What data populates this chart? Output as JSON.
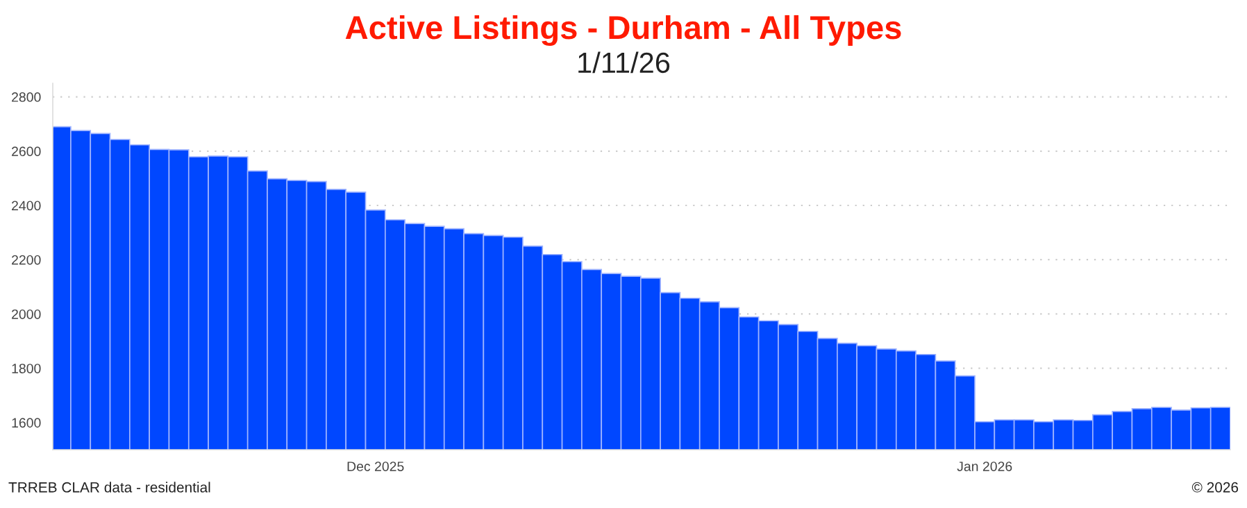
{
  "chart_data": {
    "type": "bar",
    "title": "Active Listings - Durham - All Types",
    "subtitle": "1/11/26",
    "x": [
      "2025-11-15",
      "2025-11-16",
      "2025-11-17",
      "2025-11-18",
      "2025-11-19",
      "2025-11-20",
      "2025-11-21",
      "2025-11-22",
      "2025-11-23",
      "2025-11-24",
      "2025-11-25",
      "2025-11-26",
      "2025-11-27",
      "2025-11-28",
      "2025-11-29",
      "2025-11-30",
      "2025-12-01",
      "2025-12-02",
      "2025-12-03",
      "2025-12-04",
      "2025-12-05",
      "2025-12-06",
      "2025-12-07",
      "2025-12-08",
      "2025-12-09",
      "2025-12-10",
      "2025-12-11",
      "2025-12-12",
      "2025-12-13",
      "2025-12-14",
      "2025-12-15",
      "2025-12-16",
      "2025-12-17",
      "2025-12-18",
      "2025-12-19",
      "2025-12-20",
      "2025-12-21",
      "2025-12-22",
      "2025-12-23",
      "2025-12-24",
      "2025-12-25",
      "2025-12-26",
      "2025-12-27",
      "2025-12-28",
      "2025-12-29",
      "2025-12-30",
      "2025-12-31",
      "2026-01-01",
      "2026-01-02",
      "2026-01-03",
      "2026-01-04",
      "2026-01-05",
      "2026-01-06",
      "2026-01-07",
      "2026-01-08",
      "2026-01-09",
      "2026-01-10",
      "2026-01-11",
      "2026-01-12",
      "2026-01-13"
    ],
    "series": [
      {
        "color": "#0047ff",
        "values": [
          2690,
          2676,
          2665,
          2643,
          2623,
          2606,
          2605,
          2579,
          2582,
          2579,
          2527,
          2498,
          2492,
          2488,
          2459,
          2449,
          2383,
          2347,
          2333,
          2323,
          2314,
          2296,
          2289,
          2283,
          2250,
          2219,
          2193,
          2164,
          2149,
          2139,
          2132,
          2079,
          2058,
          2045,
          2023,
          1989,
          1975,
          1961,
          1936,
          1910,
          1892,
          1883,
          1871,
          1864,
          1851,
          1827,
          1772,
          1603,
          1610,
          1610,
          1603,
          1610,
          1608,
          1629,
          1641,
          1651,
          1656,
          1646,
          1654,
          1656
        ]
      }
    ],
    "xlim": [
      "2025-11-14T14:00",
      "2026-01-13T12:00"
    ],
    "xticks": [
      {
        "value": "2025-12-01",
        "label": "Dec 2025"
      },
      {
        "value": "2026-01-01",
        "label": "Jan 2026"
      }
    ],
    "ylim": [
      1500,
      2850
    ],
    "yticks": [
      1600,
      1800,
      2000,
      2200,
      2400,
      2600,
      2800
    ],
    "grid": "y",
    "legend": false,
    "annotations": [
      "TRREB CLAR data - residential",
      "© 2026"
    ]
  }
}
